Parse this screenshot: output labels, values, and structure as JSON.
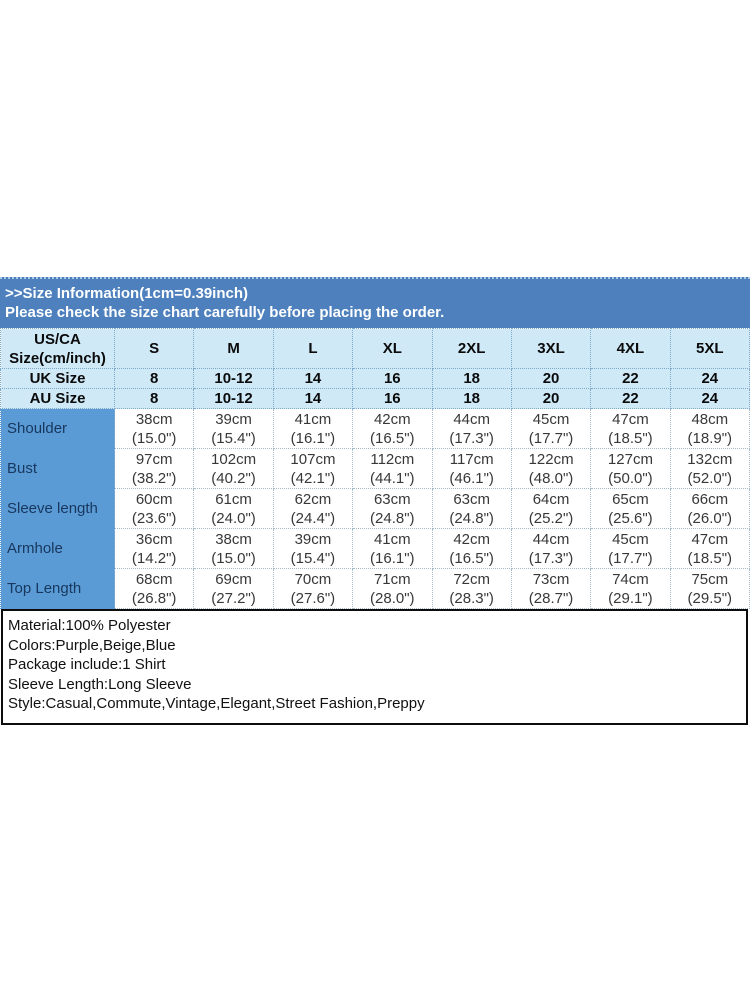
{
  "colors": {
    "banner_bg": "#4d80bd",
    "header_bg": "#cfe9f7",
    "row_label_bg": "#5b9bd5",
    "row_label_text": "#17375e",
    "banner_text": "#ffffff",
    "details_border": "#0c0c0c"
  },
  "banner": {
    "line1": ">>Size Information(1cm=0.39inch)",
    "line2": "Please check the size chart carefully before placing the order."
  },
  "size_table": {
    "corner": {
      "line1": "US/CA",
      "line2": "Size(cm/inch)"
    },
    "columns": [
      "S",
      "M",
      "L",
      "XL",
      "2XL",
      "3XL",
      "4XL",
      "5XL"
    ],
    "uk_row": {
      "label": "UK Size",
      "values": [
        "8",
        "10-12",
        "14",
        "16",
        "18",
        "20",
        "22",
        "24"
      ]
    },
    "au_row": {
      "label": "AU Size",
      "values": [
        "8",
        "10-12",
        "14",
        "16",
        "18",
        "20",
        "22",
        "24"
      ]
    },
    "rows": [
      {
        "label": "Shoulder",
        "cm": [
          "38cm",
          "39cm",
          "41cm",
          "42cm",
          "44cm",
          "45cm",
          "47cm",
          "48cm"
        ],
        "inch": [
          "(15.0\")",
          "(15.4\")",
          "(16.1\")",
          "(16.5\")",
          "(17.3\")",
          "(17.7\")",
          "(18.5\")",
          "(18.9\")"
        ]
      },
      {
        "label": "Bust",
        "cm": [
          "97cm",
          "102cm",
          "107cm",
          "112cm",
          "117cm",
          "122cm",
          "127cm",
          "132cm"
        ],
        "inch": [
          "(38.2\")",
          "(40.2\")",
          "(42.1\")",
          "(44.1\")",
          "(46.1\")",
          "(48.0\")",
          "(50.0\")",
          "(52.0\")"
        ]
      },
      {
        "label": "Sleeve length",
        "cm": [
          "60cm",
          "61cm",
          "62cm",
          "63cm",
          "63cm",
          "64cm",
          "65cm",
          "66cm"
        ],
        "inch": [
          "(23.6\")",
          "(24.0\")",
          "(24.4\")",
          "(24.8\")",
          "(24.8\")",
          "(25.2\")",
          "(25.6\")",
          "(26.0\")"
        ]
      },
      {
        "label": "Armhole",
        "cm": [
          "36cm",
          "38cm",
          "39cm",
          "41cm",
          "42cm",
          "44cm",
          "45cm",
          "47cm"
        ],
        "inch": [
          "(14.2\")",
          "(15.0\")",
          "(15.4\")",
          "(16.1\")",
          "(16.5\")",
          "(17.3\")",
          "(17.7\")",
          "(18.5\")"
        ]
      },
      {
        "label": "Top Length",
        "cm": [
          "68cm",
          "69cm",
          "70cm",
          "71cm",
          "72cm",
          "73cm",
          "74cm",
          "75cm"
        ],
        "inch": [
          "(26.8\")",
          "(27.2\")",
          "(27.6\")",
          "(28.0\")",
          "(28.3\")",
          "(28.7\")",
          "(29.1\")",
          "(29.5\")"
        ]
      }
    ]
  },
  "details": {
    "lines": [
      "Material:100% Polyester",
      "Colors:Purple,Beige,Blue",
      "Package include:1 Shirt",
      "Sleeve Length:Long Sleeve",
      "Style:Casual,Commute,Vintage,Elegant,Street Fashion,Preppy"
    ]
  }
}
